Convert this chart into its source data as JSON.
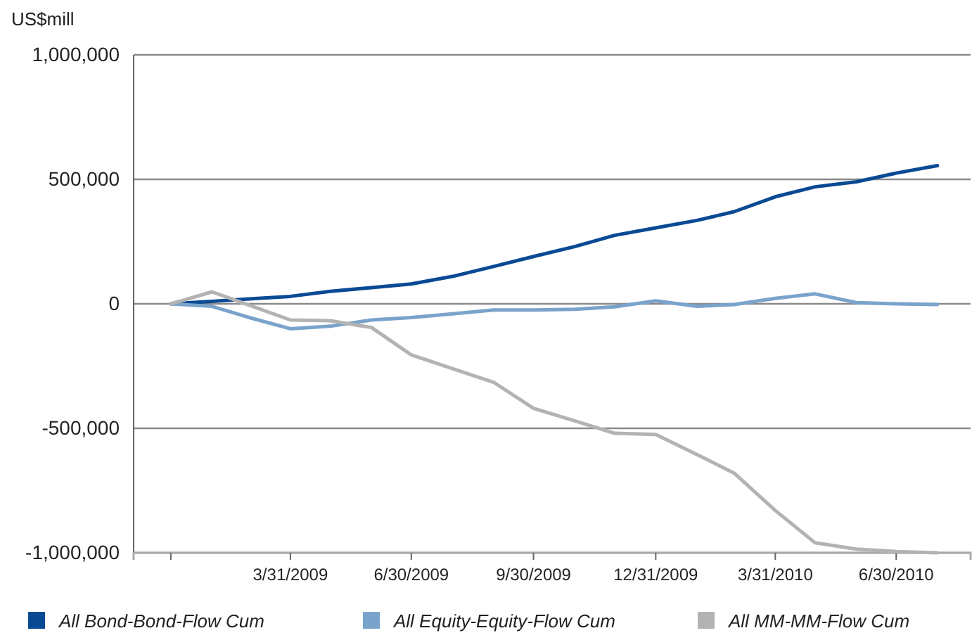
{
  "chart_data": {
    "type": "line",
    "ylabel": "US$mill",
    "x": [
      "2008-12-31",
      "2009-01-31",
      "2009-02-28",
      "2009-03-31",
      "2009-04-30",
      "2009-05-31",
      "2009-06-30",
      "2009-07-31",
      "2009-08-31",
      "2009-09-30",
      "2009-10-31",
      "2009-11-30",
      "2009-12-31",
      "2010-01-31",
      "2010-02-28",
      "2010-03-31",
      "2010-04-30",
      "2010-05-31",
      "2010-06-30",
      "2010-07-31"
    ],
    "series": [
      {
        "name": "All Bond-Bond-Flow Cum",
        "color": "#0a4a94",
        "values": [
          0,
          10000,
          20000,
          30000,
          50000,
          65000,
          80000,
          110000,
          150000,
          190000,
          230000,
          275000,
          305000,
          335000,
          370000,
          430000,
          470000,
          490000,
          525000,
          555000
        ]
      },
      {
        "name": "All Equity-Equity-Flow Cum",
        "color": "#7aa3cc",
        "values": [
          0,
          -10000,
          -55000,
          -100000,
          -90000,
          -65000,
          -55000,
          -40000,
          -25000,
          -25000,
          -22000,
          -12000,
          12000,
          -10000,
          -3000,
          22000,
          40000,
          5000,
          0,
          -3000
        ]
      },
      {
        "name": "All MM-MM-Flow Cum",
        "color": "#b3b3b3",
        "values": [
          0,
          48000,
          -5000,
          -65000,
          -68000,
          -95000,
          -205000,
          -260000,
          -315000,
          -420000,
          -470000,
          -520000,
          -525000,
          -605000,
          -680000,
          -830000,
          -960000,
          -985000,
          -995000,
          -1000000
        ]
      }
    ],
    "xlim": [
      "2008-12-03",
      "2010-08-25"
    ],
    "xticks": [
      {
        "value": "2008-12-31",
        "label": null
      },
      {
        "value": "2009-03-31",
        "label": "3/31/2009"
      },
      {
        "value": "2009-06-30",
        "label": "6/30/2009"
      },
      {
        "value": "2009-09-30",
        "label": "9/30/2009"
      },
      {
        "value": "2009-12-31",
        "label": "12/31/2009"
      },
      {
        "value": "2010-03-31",
        "label": "3/31/2010"
      },
      {
        "value": "2010-06-30",
        "label": "6/30/2010"
      }
    ],
    "ylim": [
      -1000000,
      1000000
    ],
    "yticks": [
      {
        "value": -1000000,
        "label": "-1,000,000"
      },
      {
        "value": -500000,
        "label": "-500,000"
      },
      {
        "value": 0,
        "label": "0"
      },
      {
        "value": 500000,
        "label": "500,000"
      },
      {
        "value": 1000000,
        "label": "1,000,000"
      }
    ],
    "grid": "y",
    "legend": "bottom",
    "marker": "none",
    "line_style": "solid"
  }
}
